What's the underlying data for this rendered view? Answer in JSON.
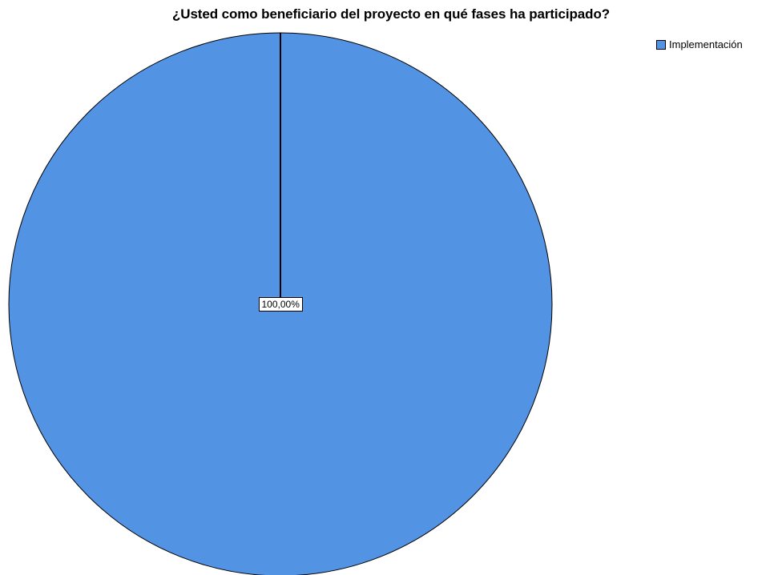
{
  "chart_data": {
    "type": "pie",
    "title": "¿Usted como beneficiario del proyecto en qué fases ha participado?",
    "categories": [
      "Implementación"
    ],
    "values": [
      100.0
    ],
    "data_labels": [
      "100,00%"
    ],
    "colors": [
      "#5393e4"
    ],
    "legend": {
      "placement": "top-right",
      "entries": [
        "Implementación"
      ]
    }
  }
}
